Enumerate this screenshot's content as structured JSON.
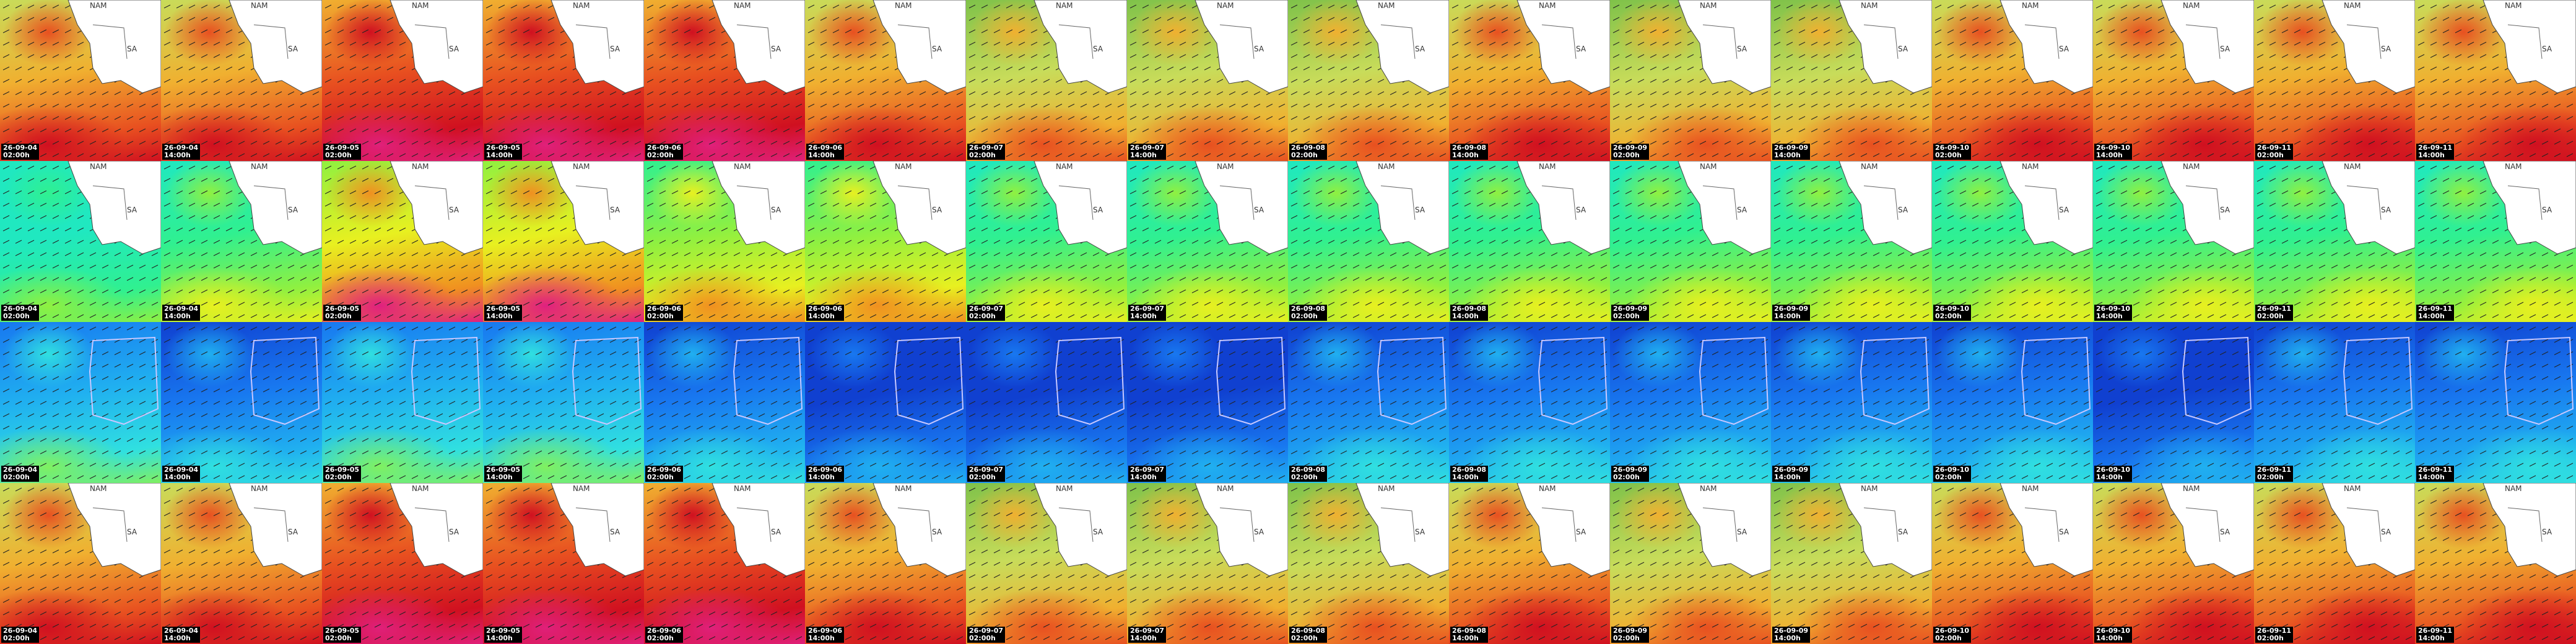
{
  "map_labels": {
    "country_north": "NAM",
    "country_south": "SA"
  },
  "rows": [
    {
      "panels": [
        {
          "date": "26-09-04",
          "time": "02:00h"
        },
        {
          "date": "26-09-04",
          "time": "14:00h"
        },
        {
          "date": "26-09-05",
          "time": "02:00h"
        },
        {
          "date": "26-09-05",
          "time": "14:00h"
        },
        {
          "date": "26-09-06",
          "time": "02:00h"
        },
        {
          "date": "26-09-06",
          "time": "14:00h"
        },
        {
          "date": "26-09-07",
          "time": "02:00h"
        },
        {
          "date": "26-09-07",
          "time": "14:00h"
        },
        {
          "date": "26-09-08",
          "time": "02:00h"
        },
        {
          "date": "26-09-08",
          "time": "14:00h"
        },
        {
          "date": "26-09-09",
          "time": "02:00h"
        },
        {
          "date": "26-09-09",
          "time": "14:00h"
        },
        {
          "date": "26-09-10",
          "time": "02:00h"
        },
        {
          "date": "26-09-10",
          "time": "14:00h"
        },
        {
          "date": "26-09-11",
          "time": "02:00h"
        },
        {
          "date": "26-09-11",
          "time": "14:00h"
        }
      ]
    },
    {
      "panels": [
        {
          "date": "26-09-04",
          "time": "02:00h"
        },
        {
          "date": "26-09-04",
          "time": "14:00h"
        },
        {
          "date": "26-09-05",
          "time": "02:00h"
        },
        {
          "date": "26-09-05",
          "time": "14:00h"
        },
        {
          "date": "26-09-06",
          "time": "02:00h"
        },
        {
          "date": "26-09-06",
          "time": "14:00h"
        },
        {
          "date": "26-09-07",
          "time": "02:00h"
        },
        {
          "date": "26-09-07",
          "time": "14:00h"
        },
        {
          "date": "26-09-08",
          "time": "02:00h"
        },
        {
          "date": "26-09-08",
          "time": "14:00h"
        },
        {
          "date": "26-09-09",
          "time": "02:00h"
        },
        {
          "date": "26-09-09",
          "time": "14:00h"
        },
        {
          "date": "26-09-10",
          "time": "02:00h"
        },
        {
          "date": "26-09-10",
          "time": "14:00h"
        },
        {
          "date": "26-09-11",
          "time": "02:00h"
        },
        {
          "date": "26-09-11",
          "time": "14:00h"
        }
      ]
    },
    {
      "panels": [
        {
          "date": "26-09-04",
          "time": "02:00h"
        },
        {
          "date": "26-09-04",
          "time": "14:00h"
        },
        {
          "date": "26-09-05",
          "time": "02:00h"
        },
        {
          "date": "26-09-05",
          "time": "14:00h"
        },
        {
          "date": "26-09-06",
          "time": "02:00h"
        },
        {
          "date": "26-09-06",
          "time": "14:00h"
        },
        {
          "date": "26-09-07",
          "time": "02:00h"
        },
        {
          "date": "26-09-07",
          "time": "14:00h"
        },
        {
          "date": "26-09-08",
          "time": "02:00h"
        },
        {
          "date": "26-09-08",
          "time": "14:00h"
        },
        {
          "date": "26-09-09",
          "time": "02:00h"
        },
        {
          "date": "26-09-09",
          "time": "14:00h"
        },
        {
          "date": "26-09-10",
          "time": "02:00h"
        },
        {
          "date": "26-09-10",
          "time": "14:00h"
        },
        {
          "date": "26-09-11",
          "time": "02:00h"
        },
        {
          "date": "26-09-11",
          "time": "14:00h"
        }
      ]
    },
    {
      "panels": [
        {
          "date": "26-09-04",
          "time": "02:00h"
        },
        {
          "date": "26-09-04",
          "time": "14:00h"
        },
        {
          "date": "26-09-05",
          "time": "02:00h"
        },
        {
          "date": "26-09-05",
          "time": "14:00h"
        },
        {
          "date": "26-09-06",
          "time": "02:00h"
        },
        {
          "date": "26-09-06",
          "time": "14:00h"
        },
        {
          "date": "26-09-07",
          "time": "02:00h"
        },
        {
          "date": "26-09-07",
          "time": "14:00h"
        },
        {
          "date": "26-09-08",
          "time": "02:00h"
        },
        {
          "date": "26-09-08",
          "time": "14:00h"
        },
        {
          "date": "26-09-09",
          "time": "02:00h"
        },
        {
          "date": "26-09-09",
          "time": "14:00h"
        },
        {
          "date": "26-09-10",
          "time": "02:00h"
        },
        {
          "date": "26-09-10",
          "time": "14:00h"
        },
        {
          "date": "26-09-11",
          "time": "02:00h"
        },
        {
          "date": "26-09-11",
          "time": "14:00h"
        }
      ]
    }
  ]
}
